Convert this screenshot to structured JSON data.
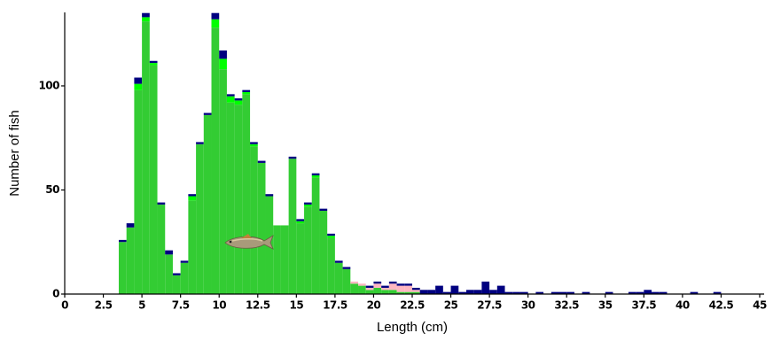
{
  "chart_data": {
    "type": "histogram",
    "x_label": "Length (cm)",
    "y_label": "Number of fish",
    "bins": [
      3.5,
      4,
      4.5,
      5,
      5.5,
      6,
      6.5,
      7,
      7.5,
      8,
      8.5,
      9,
      9.5,
      10,
      10.5,
      11,
      11.5,
      12,
      12.5,
      13,
      13.5,
      14,
      14.5,
      15,
      15.5,
      16,
      16.5,
      17,
      17.5,
      18,
      18.5,
      19,
      19.5,
      20,
      20.5,
      21,
      21.5,
      22,
      22.5,
      23,
      23.5,
      24,
      24.5,
      25,
      25.5,
      26,
      26.5,
      27,
      27.5,
      28,
      28.5,
      29,
      29.5,
      30,
      30.5,
      31,
      31.5,
      32,
      32.5,
      33,
      33.5,
      34,
      34.5,
      35,
      35.5,
      36,
      36.5,
      37,
      37.5,
      38,
      38.5,
      39,
      39.5,
      40,
      40.5,
      41,
      41.5,
      42,
      42.5,
      43
    ],
    "series": [
      {
        "color": "#33cc33",
        "values": [
          25,
          32,
          98,
          131,
          110,
          43,
          19,
          9,
          15,
          45,
          72,
          86,
          128,
          108,
          92,
          91,
          96,
          71,
          63,
          47,
          33,
          33,
          65,
          34,
          42,
          56,
          40,
          27,
          15,
          12,
          5,
          4,
          2,
          3,
          2,
          2,
          1,
          1,
          1,
          0,
          0,
          0,
          0,
          0,
          0,
          0,
          0,
          0,
          0,
          0,
          0,
          0,
          0,
          0,
          0,
          0,
          0,
          0,
          0,
          0,
          0,
          0,
          0,
          0,
          0,
          0,
          0,
          0,
          0,
          0,
          0,
          0,
          0,
          0,
          0,
          0,
          0,
          0,
          0
        ]
      },
      {
        "color": "#00ff00",
        "values": [
          0,
          0,
          3,
          2,
          1,
          0,
          0,
          0,
          0,
          2,
          0,
          0,
          4,
          5,
          3,
          2,
          1,
          1,
          0,
          0,
          0,
          0,
          0,
          1,
          1,
          1,
          0,
          1,
          0,
          0,
          0,
          0,
          0,
          0,
          0,
          0,
          0,
          0,
          0,
          0,
          0,
          0,
          0,
          0,
          0,
          0,
          0,
          0,
          0,
          0,
          0,
          0,
          0,
          0,
          0,
          0,
          0,
          0,
          0,
          0,
          0,
          0,
          0,
          0,
          0,
          0,
          0,
          0,
          0,
          0,
          0,
          0,
          0,
          0,
          0,
          0,
          0,
          0,
          0
        ]
      },
      {
        "color": "#ffb6c1",
        "values": [
          0,
          0,
          0,
          0,
          0,
          0,
          0,
          0,
          0,
          0,
          0,
          0,
          0,
          0,
          0,
          0,
          0,
          0,
          0,
          0,
          0,
          0,
          0,
          0,
          0,
          0,
          0,
          0,
          0,
          0,
          1,
          1,
          1,
          2,
          1,
          3,
          3,
          3,
          1,
          0,
          0,
          0,
          0,
          0,
          0,
          0,
          0,
          0,
          0,
          0,
          0,
          0,
          0,
          0,
          0,
          0,
          0,
          0,
          0,
          0,
          0,
          0,
          0,
          0,
          0,
          0,
          0,
          0,
          0,
          0,
          0,
          0,
          0,
          0,
          0,
          0,
          0,
          0,
          0
        ]
      },
      {
        "color": "#000080",
        "values": [
          1,
          2,
          3,
          2,
          1,
          1,
          2,
          1,
          1,
          1,
          1,
          1,
          3,
          4,
          1,
          1,
          1,
          1,
          1,
          1,
          0,
          0,
          1,
          1,
          1,
          1,
          1,
          1,
          1,
          1,
          0,
          0,
          1,
          1,
          1,
          1,
          1,
          1,
          1,
          2,
          2,
          4,
          1,
          4,
          1,
          2,
          2,
          6,
          2,
          4,
          1,
          1,
          1,
          0,
          1,
          0,
          1,
          1,
          1,
          0,
          1,
          0,
          0,
          1,
          0,
          0,
          1,
          1,
          2,
          1,
          1,
          0,
          0,
          0,
          1,
          0,
          0,
          1,
          0
        ]
      }
    ],
    "xlim": [
      0,
      45
    ],
    "xticks": [
      0,
      2.5,
      5,
      7.5,
      10,
      12.5,
      15,
      17.5,
      20,
      22.5,
      25,
      27.5,
      30,
      32.5,
      35,
      37.5,
      40,
      42.5,
      45
    ],
    "ylim": [
      0,
      137
    ],
    "yticks": [
      0,
      50,
      100
    ]
  }
}
